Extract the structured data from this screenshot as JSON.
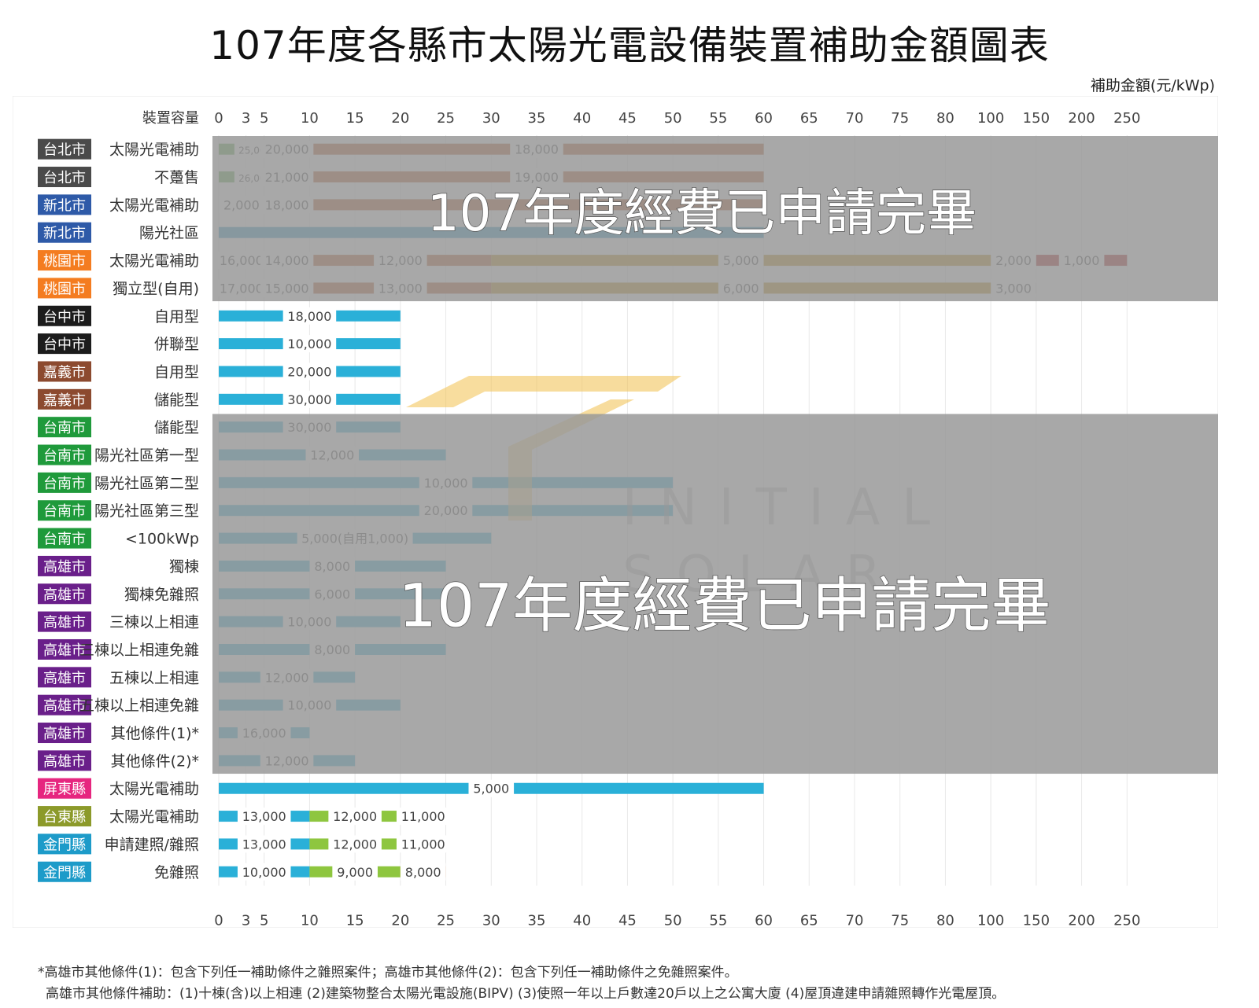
{
  "title": "107年度各縣市太陽光電設備裝置補助金額圖表",
  "unit_label": "補助金額(元/kWp)",
  "notes": [
    "*高雄市其他條件(1)：包含下列任一補助條件之雜照案件；高雄市其他條件(2)：包含下列任一補助條件之免雜照案件。",
    "高雄市其他條件補助：(1)十棟(含)以上相連 (2)建築物整合太陽光電設施(BIPV) (3)使照一年以上戶數達20戶以上之公寓大廈 (4)屋頂違建申請雜照轉作光電屋頂。"
  ],
  "watermark": {
    "line1": "INITIAL",
    "line2": "SOLAR"
  },
  "overlays": [
    {
      "label": "107年度經費已申請完畢",
      "rows": [
        0,
        5
      ]
    },
    {
      "label": "107年度經費已申請完畢",
      "rows": [
        10,
        22
      ]
    }
  ],
  "colors": {
    "tp": "#4a4a4a",
    "ntp": "#2e5aa8",
    "ty": "#f47c20",
    "tc": "#1c1c1c",
    "cy": "#8c4a2f",
    "tn": "#1f9a3b",
    "ks": "#6a1f8a",
    "pt": "#e6267f",
    "tt": "#8c9a2a",
    "km": "#1d9bc9",
    "seg_blue": "#2596c4",
    "seg_green": "#58a548",
    "seg_rust": "#b5501c",
    "seg_gold": "#b8860b",
    "seg_brown": "#5a2c12",
    "seg_red": "#a80f0f",
    "seg_sky": "#2ab0d8",
    "seg_lime": "#8ec63f",
    "seg_orange": "#f07b20",
    "overlay": "#999999"
  },
  "chart_data": {
    "type": "bar",
    "orientation": "horizontal",
    "stacked": true,
    "x_axis_title": "裝置容量",
    "x_ticks": [
      "0",
      "3",
      "5",
      "10",
      "15",
      "20",
      "25",
      "30",
      "35",
      "40",
      "45",
      "50",
      "55",
      "60",
      "65",
      "70",
      "75",
      "80",
      "100",
      "150",
      "200",
      "250"
    ],
    "grid": true,
    "rows": [
      {
        "city": "台北市",
        "color_key": "tp",
        "label": "太陽光電補助",
        "segments": [
          {
            "from": "0",
            "to": "3",
            "value": "",
            "color": "seg_green"
          },
          {
            "from": "3",
            "to": "5",
            "value": "25,000",
            "color": "seg_blue"
          },
          {
            "from": "5",
            "to": "10",
            "value": "20,000",
            "color": "seg_green"
          },
          {
            "from": "10",
            "to": "60",
            "value": "18,000",
            "color": "seg_rust"
          }
        ]
      },
      {
        "city": "台北市",
        "color_key": "tp",
        "label": "不躉售",
        "segments": [
          {
            "from": "0",
            "to": "3",
            "value": "",
            "color": "seg_green"
          },
          {
            "from": "3",
            "to": "5",
            "value": "26,000",
            "color": "seg_blue"
          },
          {
            "from": "5",
            "to": "10",
            "value": "21,000",
            "color": "seg_green"
          },
          {
            "from": "10",
            "to": "60",
            "value": "19,000",
            "color": "seg_rust"
          }
        ]
      },
      {
        "city": "新北市",
        "color_key": "ntp",
        "label": "太陽光電補助",
        "segments": [
          {
            "from": "0",
            "to": "5",
            "value": "2,000",
            "color": "seg_blue"
          },
          {
            "from": "5",
            "to": "10",
            "value": "18,000",
            "color": "seg_green"
          },
          {
            "from": "10",
            "to": "60",
            "value": "",
            "color": "seg_rust"
          }
        ]
      },
      {
        "city": "新北市",
        "color_key": "ntp",
        "label": "陽光社區",
        "segments": [
          {
            "from": "0",
            "to": "60",
            "value": "",
            "color": "seg_blue"
          }
        ]
      },
      {
        "city": "桃園市",
        "color_key": "ty",
        "label": "太陽光電補助",
        "segments": [
          {
            "from": "0",
            "to": "5",
            "value": "16,000",
            "color": "seg_blue"
          },
          {
            "from": "5",
            "to": "10",
            "value": "14,000",
            "color": "seg_green"
          },
          {
            "from": "10",
            "to": "30",
            "value": "12,000",
            "color": "seg_rust"
          },
          {
            "from": "30",
            "to": "100",
            "value": "5,000",
            "color": "seg_gold"
          },
          {
            "from": "100",
            "to": "150",
            "value": "2,000",
            "color": "seg_brown"
          },
          {
            "from": "150",
            "to": "250",
            "value": "1,000",
            "color": "seg_red"
          }
        ]
      },
      {
        "city": "桃園市",
        "color_key": "ty",
        "label": "獨立型(自用)",
        "segments": [
          {
            "from": "0",
            "to": "5",
            "value": "17,000",
            "color": "seg_blue"
          },
          {
            "from": "5",
            "to": "10",
            "value": "15,000",
            "color": "seg_green"
          },
          {
            "from": "10",
            "to": "30",
            "value": "13,000",
            "color": "seg_rust"
          },
          {
            "from": "30",
            "to": "100",
            "value": "6,000",
            "color": "seg_gold"
          },
          {
            "from": "100",
            "to": "150",
            "value": "3,000",
            "color": "seg_brown"
          }
        ]
      },
      {
        "city": "台中市",
        "color_key": "tc",
        "label": "自用型",
        "segments": [
          {
            "from": "0",
            "to": "20",
            "value": "18,000",
            "color": "seg_sky"
          }
        ]
      },
      {
        "city": "台中市",
        "color_key": "tc",
        "label": "併聯型",
        "segments": [
          {
            "from": "0",
            "to": "20",
            "value": "10,000",
            "color": "seg_sky"
          }
        ]
      },
      {
        "city": "嘉義市",
        "color_key": "cy",
        "label": "自用型",
        "segments": [
          {
            "from": "0",
            "to": "20",
            "value": "20,000",
            "color": "seg_sky"
          }
        ]
      },
      {
        "city": "嘉義市",
        "color_key": "cy",
        "label": "儲能型",
        "segments": [
          {
            "from": "0",
            "to": "20",
            "value": "30,000",
            "color": "seg_sky"
          }
        ]
      },
      {
        "city": "台南市",
        "color_key": "tn",
        "label": "儲能型",
        "segments": [
          {
            "from": "0",
            "to": "20",
            "value": "30,000",
            "color": "seg_sky"
          }
        ]
      },
      {
        "city": "台南市",
        "color_key": "tn",
        "label": "陽光社區第一型",
        "segments": [
          {
            "from": "0",
            "to": "25",
            "value": "12,000",
            "color": "seg_sky"
          }
        ]
      },
      {
        "city": "台南市",
        "color_key": "tn",
        "label": "陽光社區第二型",
        "segments": [
          {
            "from": "0",
            "to": "50",
            "value": "10,000",
            "color": "seg_sky"
          }
        ]
      },
      {
        "city": "台南市",
        "color_key": "tn",
        "label": "陽光社區第三型",
        "segments": [
          {
            "from": "0",
            "to": "50",
            "value": "20,000",
            "color": "seg_sky"
          }
        ]
      },
      {
        "city": "台南市",
        "color_key": "tn",
        "label": "<100kWp",
        "segments": [
          {
            "from": "0",
            "to": "30",
            "value": "5,000(自用1,000)",
            "color": "seg_sky"
          }
        ]
      },
      {
        "city": "高雄市",
        "color_key": "ks",
        "label": "獨棟",
        "segments": [
          {
            "from": "0",
            "to": "25",
            "value": "8,000",
            "color": "seg_sky"
          }
        ]
      },
      {
        "city": "高雄市",
        "color_key": "ks",
        "label": "獨棟免雜照",
        "segments": [
          {
            "from": "0",
            "to": "25",
            "value": "6,000",
            "color": "seg_sky"
          }
        ]
      },
      {
        "city": "高雄市",
        "color_key": "ks",
        "label": "三棟以上相連",
        "segments": [
          {
            "from": "0",
            "to": "20",
            "value": "10,000",
            "color": "seg_sky"
          }
        ]
      },
      {
        "city": "高雄市",
        "color_key": "ks",
        "label": "三棟以上相連免雜",
        "segments": [
          {
            "from": "0",
            "to": "25",
            "value": "8,000",
            "color": "seg_sky"
          }
        ]
      },
      {
        "city": "高雄市",
        "color_key": "ks",
        "label": "五棟以上相連",
        "segments": [
          {
            "from": "0",
            "to": "15",
            "value": "12,000",
            "color": "seg_sky"
          }
        ]
      },
      {
        "city": "高雄市",
        "color_key": "ks",
        "label": "五棟以上相連免雜",
        "segments": [
          {
            "from": "0",
            "to": "20",
            "value": "10,000",
            "color": "seg_sky"
          }
        ]
      },
      {
        "city": "高雄市",
        "color_key": "ks",
        "label": "其他條件(1)*",
        "segments": [
          {
            "from": "0",
            "to": "10",
            "value": "16,000",
            "color": "seg_sky"
          }
        ]
      },
      {
        "city": "高雄市",
        "color_key": "ks",
        "label": "其他條件(2)*",
        "segments": [
          {
            "from": "0",
            "to": "15",
            "value": "12,000",
            "color": "seg_sky"
          }
        ]
      },
      {
        "city": "屏東縣",
        "color_key": "pt",
        "label": "太陽光電補助",
        "segments": [
          {
            "from": "0",
            "to": "60",
            "value": "5,000",
            "color": "seg_sky"
          }
        ]
      },
      {
        "city": "台東縣",
        "color_key": "tt",
        "label": "太陽光電補助",
        "segments": [
          {
            "from": "0",
            "to": "10",
            "value": "13,000",
            "color": "seg_sky"
          },
          {
            "from": "10",
            "to": "20",
            "value": "12,000",
            "color": "seg_lime"
          },
          {
            "from": "20",
            "to": "25",
            "value": "11,000",
            "color": "seg_orange"
          }
        ]
      },
      {
        "city": "金門縣",
        "color_key": "km",
        "label": "申請建照/雜照",
        "segments": [
          {
            "from": "0",
            "to": "10",
            "value": "13,000",
            "color": "seg_sky"
          },
          {
            "from": "10",
            "to": "20",
            "value": "12,000",
            "color": "seg_lime"
          },
          {
            "from": "20",
            "to": "25",
            "value": "11,000",
            "color": "seg_orange"
          }
        ]
      },
      {
        "city": "金門縣",
        "color_key": "km",
        "label": "免雜照",
        "segments": [
          {
            "from": "0",
            "to": "10",
            "value": "10,000",
            "color": "seg_sky"
          },
          {
            "from": "10",
            "to": "20",
            "value": "9,000",
            "color": "seg_lime"
          },
          {
            "from": "20",
            "to": "25",
            "value": "8,000",
            "color": "seg_orange"
          }
        ]
      }
    ]
  }
}
